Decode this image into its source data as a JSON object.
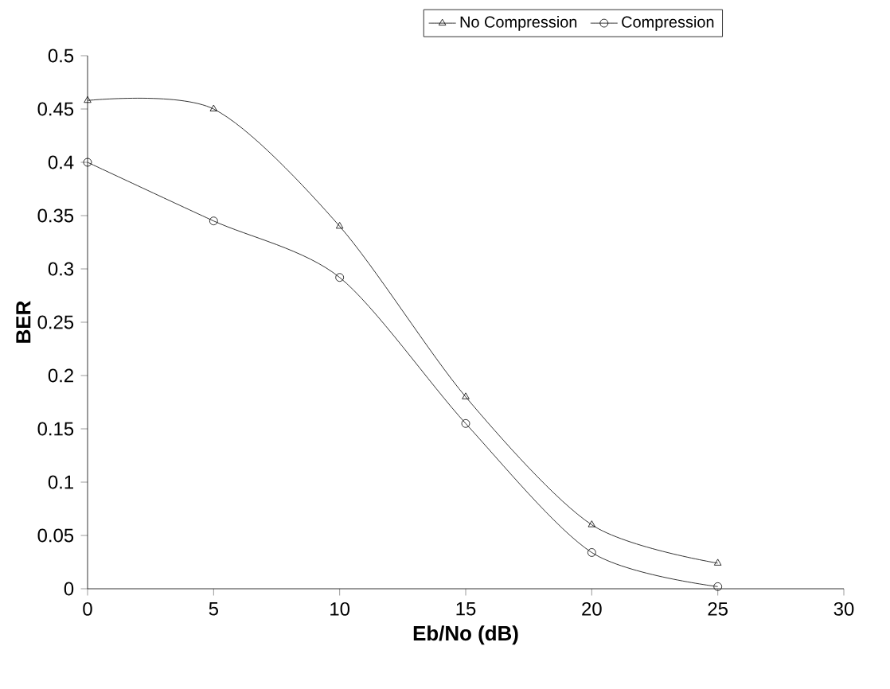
{
  "chart_data": {
    "type": "line",
    "xlabel": "Eb/No (dB)",
    "ylabel": "BER",
    "x": [
      0,
      5,
      10,
      15,
      20,
      25
    ],
    "series": [
      {
        "name": "No Compression",
        "color": "#000000",
        "marker": "triangle",
        "values": [
          0.458,
          0.45,
          0.34,
          0.18,
          0.06,
          0.024
        ]
      },
      {
        "name": "Compression",
        "color": "#000000",
        "marker": "circle",
        "values": [
          0.4,
          0.345,
          0.292,
          0.155,
          0.034,
          0.002
        ]
      }
    ],
    "xlim": [
      0,
      30
    ],
    "ylim": [
      0,
      0.5
    ],
    "xticks": [
      0,
      5,
      10,
      15,
      20,
      25,
      30
    ],
    "yticks": [
      0,
      0.05,
      0.1,
      0.15,
      0.2,
      0.25,
      0.3,
      0.35,
      0.4,
      0.45,
      0.5
    ],
    "grid": false,
    "legend": "top",
    "line_style": "solid"
  }
}
